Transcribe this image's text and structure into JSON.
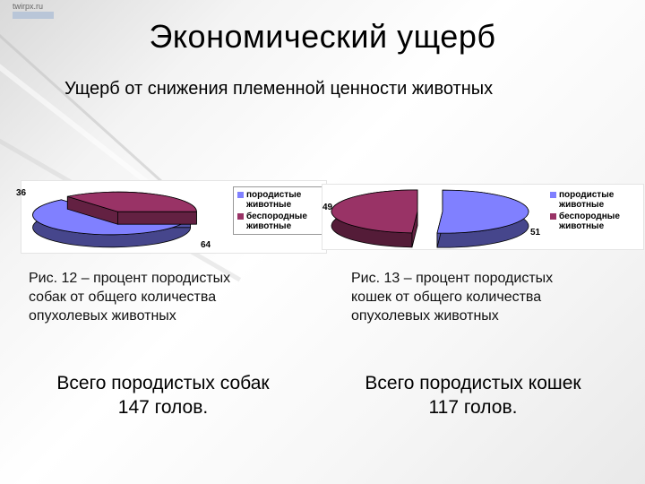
{
  "watermark": {
    "site": "twirpx.ru"
  },
  "title": "Экономический ущерб",
  "subtitle": "Ущерб от снижения племенной ценности животных",
  "colors": {
    "purebred": "#8080ff",
    "mixed": "#993366"
  },
  "chart_data": [
    {
      "type": "pie",
      "slices": [
        {
          "label": "породистые животные",
          "value": 64
        },
        {
          "label": "беспородные животные",
          "value": 36
        }
      ],
      "data_labels": [
        "64",
        "36"
      ],
      "legend": [
        "породистые животные",
        "беспородные животные"
      ],
      "legend_position": "right"
    },
    {
      "type": "pie",
      "slices": [
        {
          "label": "породистые животные",
          "value": 51
        },
        {
          "label": "беспородные животные",
          "value": 49
        }
      ],
      "data_labels": [
        "51",
        "49"
      ],
      "legend": [
        "породистые животные",
        "беспородные животные"
      ],
      "legend_position": "right"
    }
  ],
  "captions": {
    "left": [
      "Рис. 12 – процент породистых",
      "собак от общего количества",
      "опухолевых животных"
    ],
    "right": [
      "Рис. 13 – процент породистых",
      "кошек от общего количества",
      "опухолевых животных"
    ]
  },
  "totals": {
    "left": [
      "Всего породистых собак",
      "147 голов."
    ],
    "right": [
      "Всего породистых кошек",
      "117 голов."
    ]
  }
}
